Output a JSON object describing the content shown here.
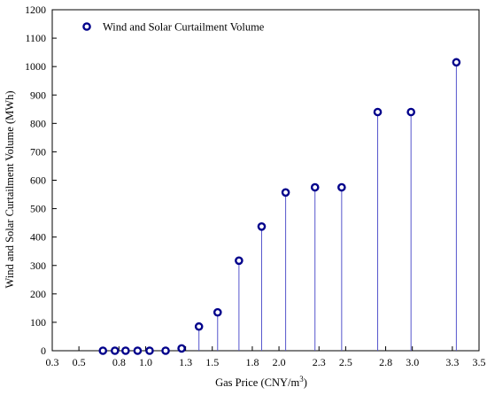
{
  "chart_data": {
    "type": "scatter",
    "style": "stem",
    "xlabel_main": "Gas Price (CNY/m",
    "xlabel_sup": "3",
    "xlabel_tail": ")",
    "ylabel": "Wind and Solar Curtailment Volume (MWh)",
    "xlim": [
      0.3,
      3.5
    ],
    "ylim": [
      0,
      1200
    ],
    "x_ticks": [
      0.3,
      0.5,
      0.8,
      1.0,
      1.3,
      1.5,
      1.8,
      2.0,
      2.3,
      2.5,
      2.8,
      3.0,
      3.3,
      3.5
    ],
    "x_tick_labels": [
      "0.3",
      "0.5",
      "0.8",
      "1.0",
      "1.3",
      "1.5",
      "1.8",
      "2.0",
      "2.3",
      "2.5",
      "2.8",
      "3.0",
      "3.3",
      "3.5"
    ],
    "y_ticks": [
      0,
      100,
      200,
      300,
      400,
      500,
      600,
      700,
      800,
      900,
      1000,
      1100,
      1200
    ],
    "y_tick_labels": [
      "0",
      "100",
      "200",
      "300",
      "400",
      "500",
      "600",
      "700",
      "800",
      "900",
      "1000",
      "1100",
      "1200"
    ],
    "grid": false,
    "legend_position": "top-left",
    "series": [
      {
        "name": "Wind and Solar Curtailment Volume",
        "color": "#00008B",
        "stem_color": "#5555CC",
        "marker": "open-circle",
        "x": [
          0.68,
          0.77,
          0.85,
          0.94,
          1.03,
          1.15,
          1.27,
          1.4,
          1.54,
          1.7,
          1.87,
          2.05,
          2.27,
          2.47,
          2.74,
          2.99,
          3.33
        ],
        "y": [
          0,
          0,
          0,
          0,
          0,
          0,
          8,
          85,
          135,
          317,
          437,
          557,
          575,
          575,
          840,
          840,
          1015
        ]
      }
    ]
  }
}
